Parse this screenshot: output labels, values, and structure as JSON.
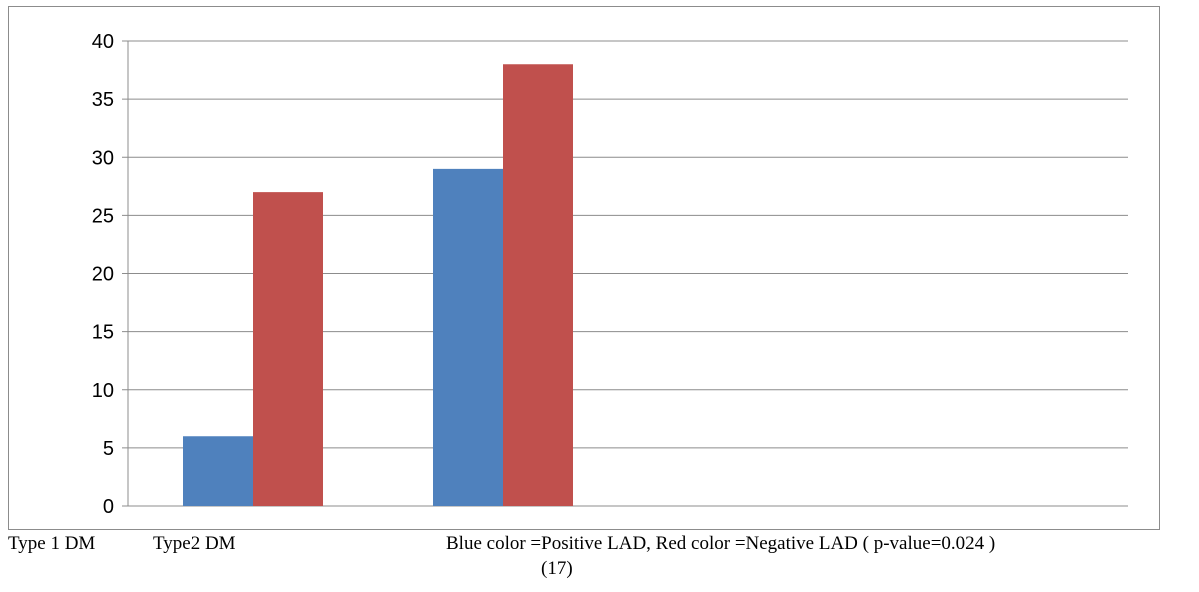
{
  "chart_data": {
    "type": "bar",
    "categories": [
      "Type 1 DM",
      "Type2 DM"
    ],
    "series": [
      {
        "color": "#4f81bd",
        "values": [
          6,
          29
        ]
      },
      {
        "color": "#c0504d",
        "values": [
          27,
          38
        ]
      }
    ],
    "ylim": [
      0,
      40
    ],
    "yticks": [
      0,
      5,
      10,
      15,
      20,
      25,
      30,
      35,
      40
    ],
    "grid": true,
    "legend_text": "Blue color =Positive LAD, Red color =Negative LAD (  p-value=0.024 )",
    "reference": "(17)"
  }
}
